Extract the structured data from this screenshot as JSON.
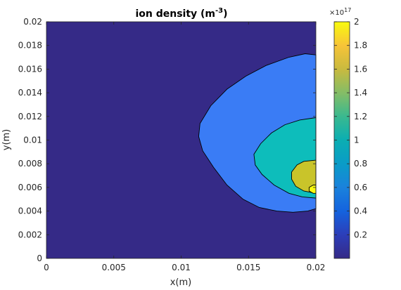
{
  "chart_data": {
    "type": "contour",
    "title": {
      "main": "ion density (m",
      "sup": "-3",
      "close": ")"
    },
    "xlabel": "x(m)",
    "ylabel": "y(m)",
    "xlim": [
      0,
      0.02
    ],
    "ylim": [
      0,
      0.02
    ],
    "x_ticks": [
      "0",
      "0.005",
      "0.01",
      "0.015",
      "0.02"
    ],
    "x_tick_values": [
      0,
      0.005,
      0.01,
      0.015,
      0.02
    ],
    "y_ticks": [
      "0",
      "0.002",
      "0.004",
      "0.006",
      "0.008",
      "0.01",
      "0.012",
      "0.014",
      "0.016",
      "0.018",
      "0.02"
    ],
    "y_tick_values": [
      0,
      0.002,
      0.004,
      0.006,
      0.008,
      0.01,
      0.012,
      0.014,
      0.016,
      0.018,
      0.02
    ],
    "colorbar": {
      "range": [
        0,
        2
      ],
      "exponent_base": "×10",
      "exponent_power": "17",
      "ticks": [
        "0.2",
        "0.4",
        "0.6",
        "0.8",
        "1",
        "1.2",
        "1.4",
        "1.6",
        "1.8",
        "2"
      ],
      "tick_values": [
        0.2,
        0.4,
        0.6,
        0.8,
        1.0,
        1.2,
        1.4,
        1.6,
        1.8,
        2.0
      ],
      "colormap": "parula"
    },
    "background_fill": "#352A87",
    "levels": [
      {
        "value": 0.45,
        "color": "#3A7CF5",
        "boundary": [
          [
            0.02,
            0.0172
          ],
          [
            0.0192,
            0.0173
          ],
          [
            0.018,
            0.017
          ],
          [
            0.0163,
            0.0163
          ],
          [
            0.0148,
            0.0154
          ],
          [
            0.0134,
            0.0143
          ],
          [
            0.0122,
            0.0129
          ],
          [
            0.0114,
            0.0114
          ],
          [
            0.0113,
            0.0103
          ],
          [
            0.0116,
            0.0091
          ],
          [
            0.0124,
            0.0077
          ],
          [
            0.0134,
            0.0062
          ],
          [
            0.0146,
            0.005
          ],
          [
            0.0158,
            0.0043
          ],
          [
            0.0171,
            0.004
          ],
          [
            0.0183,
            0.0039
          ],
          [
            0.0194,
            0.004
          ],
          [
            0.02,
            0.0042
          ]
        ]
      },
      {
        "value": 0.95,
        "color": "#0DBDBB",
        "boundary": [
          [
            0.02,
            0.0119
          ],
          [
            0.0188,
            0.0117
          ],
          [
            0.0177,
            0.0113
          ],
          [
            0.0167,
            0.0106
          ],
          [
            0.0159,
            0.0097
          ],
          [
            0.0154,
            0.0088
          ],
          [
            0.0155,
            0.0079
          ],
          [
            0.016,
            0.0071
          ],
          [
            0.0169,
            0.0062
          ],
          [
            0.018,
            0.0055
          ],
          [
            0.019,
            0.0052
          ],
          [
            0.02,
            0.0051
          ]
        ]
      },
      {
        "value": 1.45,
        "color": "#C9C42A",
        "boundary": [
          [
            0.02,
            0.0083
          ],
          [
            0.0191,
            0.0082
          ],
          [
            0.0186,
            0.0079
          ],
          [
            0.0182,
            0.0073
          ],
          [
            0.0182,
            0.0067
          ],
          [
            0.0185,
            0.0061
          ],
          [
            0.0191,
            0.0057
          ],
          [
            0.02,
            0.0055
          ]
        ]
      },
      {
        "value": 1.95,
        "color": "#F9FB0E",
        "boundary": [
          [
            0.02,
            0.0062
          ],
          [
            0.0198,
            0.0062
          ],
          [
            0.0195,
            0.006
          ],
          [
            0.0195,
            0.0057
          ],
          [
            0.0198,
            0.0055
          ],
          [
            0.02,
            0.0055
          ]
        ]
      }
    ]
  }
}
